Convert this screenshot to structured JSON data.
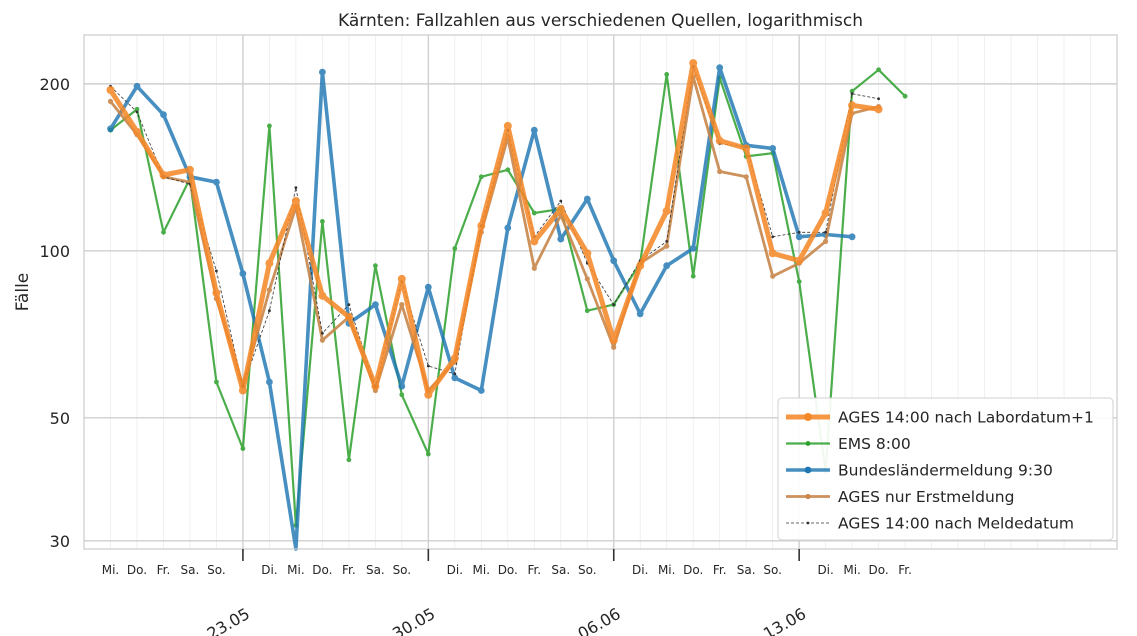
{
  "chart_data": {
    "type": "line",
    "title": "Kärnten: Fallzahlen aus verschiedenen Quellen, logarithmisch",
    "xlabel": "",
    "ylabel": "Fälle",
    "y_scale": "log",
    "ylim": [
      29,
      245
    ],
    "yticks": [
      30,
      50,
      100,
      200
    ],
    "grid": true,
    "legend_position": "lower-right",
    "x": [
      "2020-05-19",
      "2020-05-20",
      "2020-05-21",
      "2020-05-22",
      "2020-05-23",
      "2020-05-24",
      "2020-05-25",
      "2020-05-26",
      "2020-05-27",
      "2020-05-28",
      "2020-05-29",
      "2020-05-30",
      "2020-05-31",
      "2020-06-01",
      "2020-06-02",
      "2020-06-03",
      "2020-06-04",
      "2020-06-05",
      "2020-06-06",
      "2020-06-07",
      "2020-06-08",
      "2020-06-09",
      "2020-06-10",
      "2020-06-11",
      "2020-06-12",
      "2020-06-13",
      "2020-06-14",
      "2020-06-15",
      "2020-06-16",
      "2020-06-17",
      "2020-06-18",
      "2020-06-19",
      "2020-06-20",
      "2020-06-21",
      "2020-06-22",
      "2020-06-23",
      "2020-06-24",
      "2020-06-25"
    ],
    "xlim": [
      "2020-05-18",
      "2020-06-26"
    ],
    "day_ticks": [
      {
        "date": "2020-05-19",
        "label": "Mi."
      },
      {
        "date": "2020-05-20",
        "label": "Do."
      },
      {
        "date": "2020-05-21",
        "label": "Fr."
      },
      {
        "date": "2020-05-22",
        "label": "Sa."
      },
      {
        "date": "2020-05-23",
        "label": "So."
      },
      {
        "date": "2020-05-25",
        "label": "Di."
      },
      {
        "date": "2020-05-26",
        "label": "Mi."
      },
      {
        "date": "2020-05-27",
        "label": "Do."
      },
      {
        "date": "2020-05-28",
        "label": "Fr."
      },
      {
        "date": "2020-05-29",
        "label": "Sa."
      },
      {
        "date": "2020-05-30",
        "label": "So."
      },
      {
        "date": "2020-06-01",
        "label": "Di."
      },
      {
        "date": "2020-06-02",
        "label": "Mi."
      },
      {
        "date": "2020-06-03",
        "label": "Do."
      },
      {
        "date": "2020-06-04",
        "label": "Fr."
      },
      {
        "date": "2020-06-05",
        "label": "Sa."
      },
      {
        "date": "2020-06-06",
        "label": "So."
      },
      {
        "date": "2020-06-08",
        "label": "Di."
      },
      {
        "date": "2020-06-09",
        "label": "Mi."
      },
      {
        "date": "2020-06-10",
        "label": "Do."
      },
      {
        "date": "2020-06-11",
        "label": "Fr."
      },
      {
        "date": "2020-06-12",
        "label": "Sa."
      },
      {
        "date": "2020-06-13",
        "label": "So."
      },
      {
        "date": "2020-06-15",
        "label": "Di."
      },
      {
        "date": "2020-06-16",
        "label": "Mi."
      },
      {
        "date": "2020-06-17",
        "label": "Do."
      },
      {
        "date": "2020-06-18",
        "label": "Fr."
      }
    ],
    "date_ticks": [
      {
        "date": "2020-05-24",
        "label": "23.05"
      },
      {
        "date": "2020-05-31",
        "label": "30.05"
      },
      {
        "date": "2020-06-07",
        "label": "06.06"
      },
      {
        "date": "2020-06-14",
        "label": "13.06"
      }
    ],
    "series": [
      {
        "name": "EMS 8:00",
        "color": "#2ca02c",
        "values": [
          165,
          180,
          108,
          135,
          58,
          44,
          168,
          32,
          113,
          42,
          94,
          55,
          43,
          101,
          136,
          140,
          117,
          119,
          78,
          80,
          95,
          208,
          90,
          205,
          148,
          150,
          88,
          40,
          194,
          212,
          190,
          null,
          null,
          null,
          null,
          null,
          null,
          null
        ]
      },
      {
        "name": "Bundesländermeldung 9:30",
        "color": "#1f77b4",
        "values": [
          166,
          198,
          176,
          136,
          133,
          91,
          58,
          0,
          210,
          74,
          80,
          57,
          86,
          59,
          56,
          110,
          165,
          105,
          124,
          96,
          77,
          94,
          101,
          214,
          155,
          153,
          106,
          107,
          106,
          null,
          null,
          null,
          null,
          null,
          null,
          null,
          null,
          null
        ]
      },
      {
        "name": "AGES nur Erstmeldung",
        "color": "#c8864a",
        "values": [
          186,
          162,
          136,
          133,
          82,
          57,
          85,
          120,
          69,
          76,
          56,
          80,
          56,
          63,
          108,
          160,
          93,
          116,
          89,
          67,
          95,
          102,
          206,
          139,
          136,
          90,
          95,
          104,
          177,
          182,
          null,
          null,
          null,
          null,
          null,
          null,
          null,
          null
        ]
      },
      {
        "name": "AGES 14:00 nach Meldedatum",
        "color": "#333333",
        "values": [
          198,
          178,
          136,
          132,
          92,
          57,
          78,
          130,
          71,
          80,
          57,
          88,
          62,
          60,
          111,
          165,
          106,
          123,
          95,
          80,
          96,
          104,
          215,
          156,
          154,
          106,
          108,
          108,
          192,
          188,
          null,
          null,
          null,
          null,
          null,
          null,
          null,
          null
        ]
      },
      {
        "name": "AGES 14:00 nach Labordatum+1",
        "color": "#f5892a",
        "values": [
          195,
          164,
          137,
          140,
          84,
          56,
          95,
          123,
          83,
          76,
          57,
          89,
          55,
          64,
          111,
          168,
          104,
          119,
          99,
          69,
          94,
          118,
          218,
          158,
          153,
          99,
          96,
          117,
          183,
          180,
          null,
          null,
          null,
          null,
          null,
          null,
          null,
          null
        ]
      }
    ],
    "legend_order": [
      "AGES 14:00 nach Labordatum+1",
      "EMS 8:00",
      "Bundesländermeldung 9:30",
      "AGES nur Erstmeldung",
      "AGES 14:00 nach Meldedatum"
    ]
  }
}
